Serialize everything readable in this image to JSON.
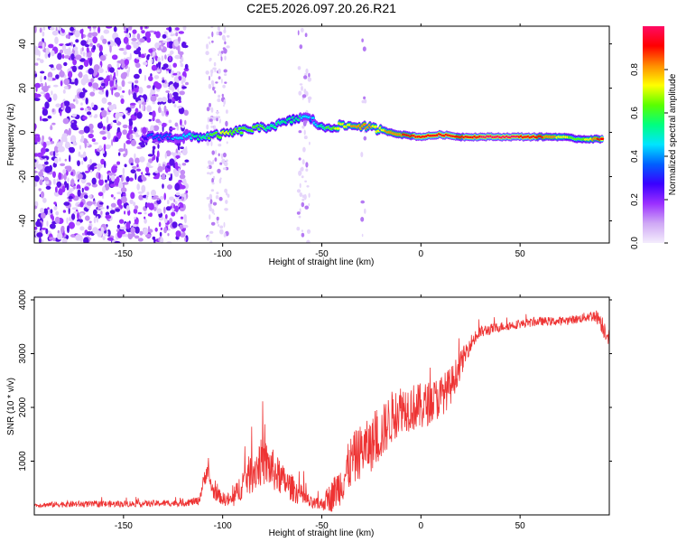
{
  "title": "C2E5.2026.097.20.26.R21",
  "chart_data": [
    {
      "type": "heatmap",
      "title": "C2E5.2026.097.20.26.R21",
      "xlabel": "Height of straight line (km)",
      "ylabel": "Frequency (Hz)",
      "xlim": [
        -195,
        95
      ],
      "ylim": [
        -50,
        48
      ],
      "xticks": [
        -150,
        -100,
        -50,
        0,
        50
      ],
      "yticks": [
        -40,
        -20,
        0,
        20,
        40
      ],
      "colorbar": {
        "label": "Normalized spectral amplitude",
        "range": [
          0,
          1
        ],
        "ticks": [
          "0.0",
          "0.2",
          "0.4",
          "0.6",
          "0.8"
        ],
        "colors": [
          "#f4edfd",
          "#cfa8f5",
          "#9b30ff",
          "#3a00ff",
          "#0060ff",
          "#00e5ff",
          "#00ff7f",
          "#5aff00",
          "#ffff00",
          "#ff8c00",
          "#ff0000",
          "#ff0a64"
        ]
      },
      "ridge": {
        "x": [
          -140,
          -120,
          -110,
          -100,
          -90,
          -80,
          -70,
          -60,
          -55,
          -50,
          -40,
          -30,
          -20,
          -10,
          0,
          10,
          20,
          30,
          40,
          50,
          60,
          70,
          80,
          92
        ],
        "freq": [
          -2,
          -2,
          -2,
          -1,
          1,
          2,
          4,
          7,
          6,
          2,
          3,
          3,
          1,
          -1,
          -2,
          -1,
          -2,
          -2,
          -2,
          -2,
          -2,
          -2,
          -3,
          -3
        ],
        "amplitude": [
          0.3,
          0.45,
          0.55,
          0.7,
          0.65,
          0.6,
          0.55,
          0.5,
          0.4,
          0.55,
          0.75,
          0.8,
          0.75,
          0.85,
          0.95,
          0.95,
          0.9,
          0.95,
          1.0,
          0.95,
          0.9,
          0.75,
          0.6,
          0.95
        ]
      },
      "noise_region": [
        -195,
        -118
      ]
    },
    {
      "type": "line",
      "xlabel": "Height of straight line (km)",
      "ylabel": "SNR (10 * v/v)",
      "xlim": [
        -195,
        95
      ],
      "ylim": [
        0,
        4050
      ],
      "xticks": [
        -150,
        -100,
        -50,
        0,
        50
      ],
      "yticks": [
        1000,
        2000,
        3000,
        4000
      ],
      "color": "#ee3333",
      "series": [
        {
          "name": "SNR",
          "x": [
            -195,
            -180,
            -160,
            -140,
            -120,
            -112,
            -108,
            -105,
            -100,
            -95,
            -90,
            -85,
            -80,
            -75,
            -70,
            -65,
            -60,
            -55,
            -50,
            -45,
            -40,
            -35,
            -30,
            -25,
            -20,
            -15,
            -10,
            -5,
            0,
            5,
            10,
            15,
            20,
            25,
            30,
            40,
            50,
            60,
            70,
            80,
            85,
            88,
            90,
            92,
            95
          ],
          "y": [
            180,
            200,
            200,
            210,
            220,
            260,
            850,
            450,
            300,
            260,
            600,
            800,
            1000,
            850,
            650,
            500,
            350,
            200,
            200,
            350,
            600,
            1000,
            1200,
            1300,
            1500,
            1800,
            2000,
            2000,
            2000,
            2100,
            2200,
            2400,
            2800,
            3200,
            3400,
            3500,
            3550,
            3600,
            3600,
            3650,
            3700,
            3700,
            3650,
            3500,
            3300
          ],
          "noise_amplitude": [
            40,
            60,
            60,
            60,
            60,
            80,
            200,
            150,
            120,
            150,
            300,
            400,
            450,
            400,
            300,
            250,
            200,
            120,
            120,
            300,
            400,
            500,
            500,
            500,
            500,
            500,
            450,
            450,
            450,
            400,
            400,
            350,
            250,
            150,
            120,
            90,
            80,
            80,
            80,
            80,
            100,
            120,
            150,
            200,
            150
          ]
        }
      ]
    }
  ]
}
